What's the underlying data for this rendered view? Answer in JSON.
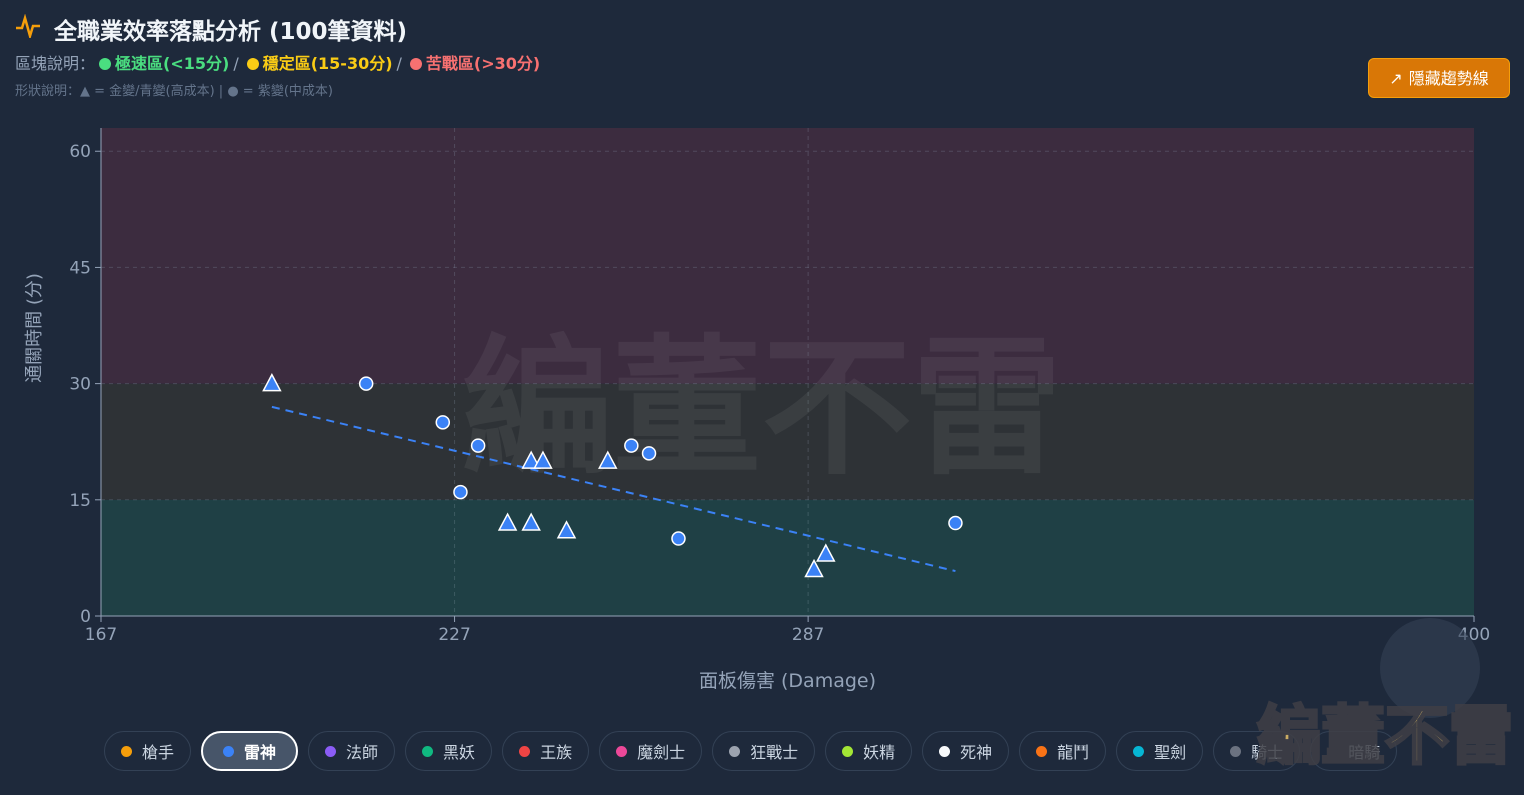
{
  "header": {
    "title": "全職業效率落點分析 (100筆資料)",
    "zone_legend_label": "區塊說明：",
    "zone_items": [
      {
        "label": "極速區(<15分)",
        "color": "#4ade80"
      },
      {
        "label": "穩定區(15-30分)",
        "color": "#facc15"
      },
      {
        "label": "苦戰區(>30分)",
        "color": "#f87171"
      }
    ],
    "shape_legend": "形狀說明：▲ = 金變/青變(高成本) | ● = 紫變(中成本)"
  },
  "button": "隱藏趨勢線",
  "chart_data": {
    "type": "scatter",
    "x_label": "面板傷害 (Damage)",
    "y_label": "通關時間 (分)",
    "xlim": [
      167,
      400
    ],
    "ylim": [
      0,
      63
    ],
    "xticks": [
      167,
      227,
      287,
      400
    ],
    "yticks": [
      0,
      15,
      30,
      45,
      60
    ],
    "grid": true,
    "zones": [
      {
        "from": 0,
        "to": 15,
        "color": "#1f4045"
      },
      {
        "from": 15,
        "to": 30,
        "color": "#2e3236"
      },
      {
        "from": 30,
        "to": 63,
        "color": "#3c2c3f"
      }
    ],
    "series": [
      {
        "marker": "triangle",
        "color": "#3b82f6",
        "x": [
          196,
          240,
          242,
          253,
          236,
          240,
          246,
          288,
          290
        ],
        "values": [
          30,
          20,
          20,
          20,
          12,
          12,
          11,
          6,
          8
        ]
      },
      {
        "marker": "circle",
        "color": "#3b82f6",
        "x": [
          212,
          225,
          231,
          228,
          257,
          260,
          265,
          312
        ],
        "values": [
          30,
          25,
          22,
          16,
          22,
          21,
          10,
          12
        ]
      }
    ],
    "trendline": {
      "color": "#3b82f6",
      "x": [
        196,
        312
      ],
      "y": [
        27,
        5.8
      ]
    }
  },
  "watermark": "編董不雷",
  "filters": {
    "selected": 1,
    "items": [
      {
        "label": "槍手",
        "color": "#f59e0b"
      },
      {
        "label": "雷神",
        "color": "#3b82f6"
      },
      {
        "label": "法師",
        "color": "#8b5cf6"
      },
      {
        "label": "黑妖",
        "color": "#10b981"
      },
      {
        "label": "王族",
        "color": "#ef4444"
      },
      {
        "label": "魔劍士",
        "color": "#ec4899"
      },
      {
        "label": "狂戰士",
        "color": "#9ca3af"
      },
      {
        "label": "妖精",
        "color": "#a3e635"
      },
      {
        "label": "死神",
        "color": "#f8fafc"
      },
      {
        "label": "龍鬥",
        "color": "#f97316"
      },
      {
        "label": "聖劍",
        "color": "#06b6d4"
      },
      {
        "label": "騎士",
        "color": "#6b7280"
      },
      {
        "label": "暗騎",
        "color": "#1e293b"
      }
    ]
  },
  "logo": "編董不雷"
}
